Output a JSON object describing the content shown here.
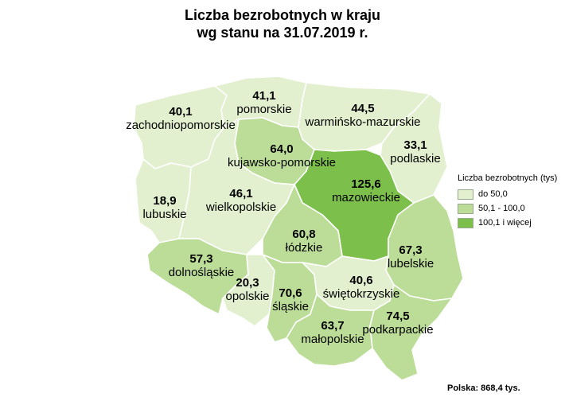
{
  "title_line1": "Liczba bezrobotnych w kraju",
  "title_line2": "wg stanu na 31.07.2019 r.",
  "legend": {
    "title": "Liczba bezrobotnych (tys)",
    "items": [
      {
        "label": "do 50,0",
        "color": "#e2f0cf"
      },
      {
        "label": "50,1 - 100,0",
        "color": "#bcdd98"
      },
      {
        "label": "100,1 i więcej",
        "color": "#7cbf4b"
      }
    ]
  },
  "regions": [
    {
      "name": "zachodniopomorskie",
      "value": "40,1",
      "color": "#e2f0cf"
    },
    {
      "name": "pomorskie",
      "value": "41,1",
      "color": "#e2f0cf"
    },
    {
      "name": "warmińsko-mazurskie",
      "value": "44,5",
      "color": "#e2f0cf"
    },
    {
      "name": "podlaskie",
      "value": "33,1",
      "color": "#e2f0cf"
    },
    {
      "name": "kujawsko-pomorskie",
      "value": "64,0",
      "color": "#bcdd98"
    },
    {
      "name": "mazowieckie",
      "value": "125,6",
      "color": "#7cbf4b"
    },
    {
      "name": "lubuskie",
      "value": "18,9",
      "color": "#e2f0cf"
    },
    {
      "name": "wielkopolskie",
      "value": "46,1",
      "color": "#e2f0cf"
    },
    {
      "name": "łódzkie",
      "value": "60,8",
      "color": "#bcdd98"
    },
    {
      "name": "lubelskie",
      "value": "67,3",
      "color": "#bcdd98"
    },
    {
      "name": "dolnośląskie",
      "value": "57,3",
      "color": "#bcdd98"
    },
    {
      "name": "opolskie",
      "value": "20,3",
      "color": "#e2f0cf"
    },
    {
      "name": "śląskie",
      "value": "70,6",
      "color": "#bcdd98"
    },
    {
      "name": "świętokrzyskie",
      "value": "40,6",
      "color": "#e2f0cf"
    },
    {
      "name": "małopolskie",
      "value": "63,7",
      "color": "#bcdd98"
    },
    {
      "name": "podkarpackie",
      "value": "74,5",
      "color": "#bcdd98"
    }
  ],
  "footer": "Polska: 868,4 tys."
}
